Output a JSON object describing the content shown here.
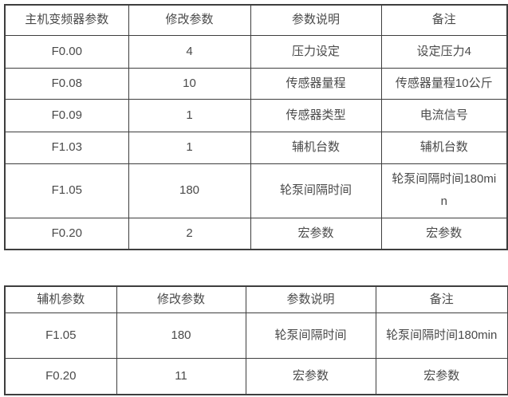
{
  "colors": {
    "background": "#ffffff",
    "text": "#4a4a4a",
    "border": "#3e3e3e"
  },
  "tables": [
    {
      "name": "main-inverter-parameters",
      "headers": [
        "主机变频器参数",
        "修改参数",
        "参数说明",
        "备注"
      ],
      "rows": [
        [
          "F0.00",
          "4",
          "压力设定",
          "设定压力4"
        ],
        [
          "F0.08",
          "10",
          "传感器量程",
          "传感器量程10公斤"
        ],
        [
          "F0.09",
          "1",
          "传感器类型",
          "电流信号"
        ],
        [
          "F1.03",
          "1",
          "辅机台数",
          "辅机台数"
        ],
        [
          "F1.05",
          "180",
          "轮泵间隔时间",
          "轮泵间隔时间180min"
        ],
        [
          "F0.20",
          "2",
          "宏参数",
          "宏参数"
        ]
      ]
    },
    {
      "name": "auxiliary-parameters",
      "headers": [
        "辅机参数",
        "修改参数",
        "参数说明",
        "备注"
      ],
      "rows": [
        [
          "F1.05",
          "180",
          "轮泵间隔时间",
          "轮泵间隔时间180min"
        ],
        [
          "F0.20",
          "11",
          "宏参数",
          "宏参数"
        ]
      ]
    }
  ]
}
